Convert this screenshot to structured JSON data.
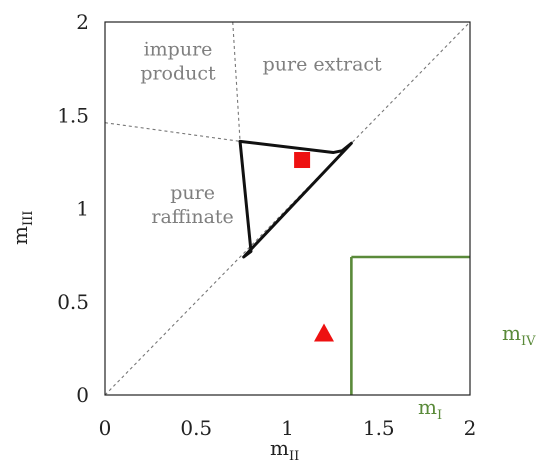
{
  "chart_data": {
    "type": "scatter",
    "title": "",
    "xlabel": {
      "base": "m",
      "sub": "II"
    },
    "ylabel": {
      "base": "m",
      "sub": "III"
    },
    "xlim": [
      0,
      2
    ],
    "ylim": [
      0,
      2
    ],
    "x_ticks": [
      {
        "value": 0,
        "label": "0"
      },
      {
        "value": 0.5,
        "label": "0.5"
      },
      {
        "value": 1,
        "label": "1"
      },
      {
        "value": 1.5,
        "label": "1.5"
      },
      {
        "value": 2,
        "label": "2"
      }
    ],
    "y_ticks": [
      {
        "value": 0,
        "label": "0"
      },
      {
        "value": 0.5,
        "label": "0.5"
      },
      {
        "value": 1,
        "label": "1"
      },
      {
        "value": 1.5,
        "label": "1.5"
      },
      {
        "value": 2,
        "label": "2"
      }
    ],
    "grid": false,
    "region_labels": [
      {
        "lines": [
          "impure",
          "product"
        ],
        "x": 0.4,
        "y": 1.82
      },
      {
        "lines": [
          "pure extract"
        ],
        "x": 1.19,
        "y": 1.74
      },
      {
        "lines": [
          "pure",
          "raffinate"
        ],
        "x": 0.48,
        "y": 1.05
      }
    ],
    "dashed_lines": [
      {
        "points": [
          [
            0,
            0
          ],
          [
            2,
            2
          ]
        ],
        "color": "#777777"
      },
      {
        "points": [
          [
            0.7,
            2
          ],
          [
            0.74,
            1.36
          ]
        ],
        "color": "#777777"
      },
      {
        "points": [
          [
            0,
            1.46
          ],
          [
            0.74,
            1.36
          ]
        ],
        "color": "#777777"
      }
    ],
    "boundary": {
      "color": "#111111",
      "points": [
        [
          0.74,
          1.36
        ],
        [
          1.25,
          1.3
        ],
        [
          1.3,
          1.31
        ],
        [
          1.35,
          1.35
        ],
        [
          0.76,
          0.74
        ],
        [
          0.8,
          0.77
        ],
        [
          0.74,
          1.36
        ]
      ]
    },
    "operating_lines": {
      "color": "#5a8a3a",
      "vertical_x": 1.35,
      "horizontal_y": 0.74,
      "label_mI": {
        "base": "m",
        "sub": "I"
      },
      "label_mIV": {
        "base": "m",
        "sub": "IV"
      }
    },
    "points": [
      {
        "shape": "square",
        "x": 1.08,
        "y": 1.26,
        "color": "#ee1111"
      },
      {
        "shape": "triangle",
        "x": 1.2,
        "y": 0.33,
        "color": "#ee1111"
      }
    ]
  }
}
